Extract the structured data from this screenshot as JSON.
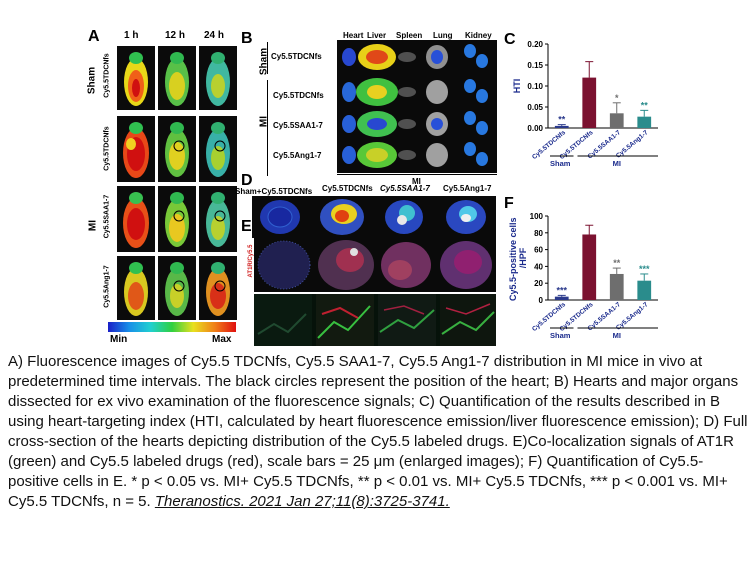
{
  "panels": {
    "A": {
      "letter": "A",
      "times": [
        "1 h",
        "12 h",
        "24 h"
      ],
      "group_sham": "Sham",
      "group_mi": "MI",
      "rows": [
        "Cy5.5TDCNfs",
        "Cy5.5TDCNfs",
        "Cy5.5SAA1-7",
        "Cy5.5Ang1-7"
      ],
      "scale_min": "Min",
      "scale_max": "Max"
    },
    "B": {
      "letter": "B",
      "organs": [
        "Heart",
        "Liver",
        "Spleen",
        "Lung",
        "Kidney"
      ],
      "group_sham": "Sham",
      "group_mi": "MI",
      "rows": [
        "Cy5.5TDCNfs",
        "Cy5.5TDCNfs",
        "Cy5.5SAA1-7",
        "Cy5.5Ang1-7"
      ]
    },
    "D": {
      "letter": "D",
      "columns": [
        "Sham+Cy5.5TDCNfs",
        "Cy5.5TDCNfs",
        "Cy5.5SAA1-7",
        "Cy5.5Ang1-7"
      ],
      "mi_label": "MI"
    },
    "E": {
      "letter": "E",
      "side_label": "AT1R/Cy5.5"
    }
  },
  "chart_data": [
    {
      "panel": "C",
      "type": "bar",
      "categories": [
        "Cy5.5TDCNfs",
        "Cy5.5TDCNfs",
        "Cy5.5SAA1-7",
        "Cy5.5Ang1-7"
      ],
      "values": [
        0.005,
        0.12,
        0.035,
        0.027
      ],
      "errors": [
        0.003,
        0.038,
        0.025,
        0.015
      ],
      "significance": [
        "**",
        "",
        "*",
        "**"
      ],
      "colors": [
        "#2b3a8c",
        "#7b1230",
        "#6e6e6e",
        "#2a8c8c"
      ],
      "ylabel": "HTI",
      "ylim": [
        0,
        0.2
      ],
      "yticks": [
        "0.00",
        "0.05",
        "0.10",
        "0.15",
        "0.20"
      ],
      "groups": [
        "Sham",
        "MI"
      ]
    },
    {
      "panel": "F",
      "type": "bar",
      "categories": [
        "Cy5.5TDCNfs",
        "Cy5.5TDCNfs",
        "Cy5.5SAA1-7",
        "Cy5.5Ang1-7"
      ],
      "values": [
        4,
        78,
        31,
        23
      ],
      "errors": [
        1.5,
        11,
        7,
        8
      ],
      "significance": [
        "***",
        "",
        "**",
        "***"
      ],
      "colors": [
        "#2b3a8c",
        "#7b1230",
        "#6e6e6e",
        "#2a8c8c"
      ],
      "ylabel": "Cy5.5-positive cells /HPF",
      "ylim": [
        0,
        100
      ],
      "yticks": [
        "0",
        "20",
        "40",
        "60",
        "80",
        "100"
      ],
      "groups": [
        "Sham",
        "MI"
      ]
    }
  ],
  "caption": {
    "text": "A) Fluorescence images of Cy5.5 TDCNfs, Cy5.5 SAA1-7, Cy5.5 Ang1-7 distribution in MI mice in vivo at predetermined time intervals. The black circles represent the position of the heart; B) Hearts and major organs dissected for ex vivo examination of the fluorescence signals; C) Quantification of the results described in B using heart-targeting index (HTI, calculated by heart fluorescence emission/liver fluorescence emission); D) Full cross-section of the hearts depicting distribution of the Cy5.5 labeled drugs. E)Co-localization signals of AT1R (green) and Cy5.5 labeled drugs (red), scale bars = 25 μm (enlarged images); F) Quantification of Cy5.5-positive cells in E. * p < 0.05 vs. MI+ Cy5.5 TDCNfs, ** p < 0.01 vs. MI+ Cy5.5 TDCNfs, *** p < 0.001 vs. MI+ Cy5.5 TDCNfs, n = 5. ",
    "citation": "Theranostics. 2021 Jan 27;11(8):3725-3741."
  },
  "colors": {
    "sham_bar": "#2b3a8c",
    "tdcnfs_bar": "#7b1230",
    "saa_bar": "#6e6e6e",
    "ang_bar": "#2a8c8c"
  }
}
